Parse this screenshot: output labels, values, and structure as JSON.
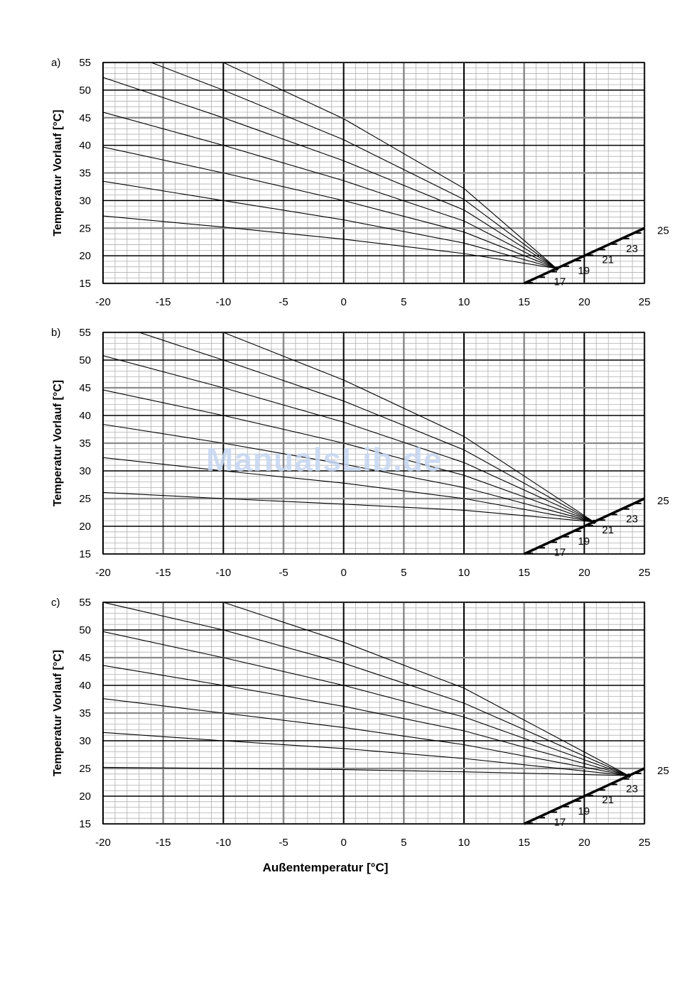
{
  "figure": {
    "xlabel": "Außentemperatur [°C]",
    "watermark": "ManualsLib.de"
  },
  "chart_data": [
    {
      "type": "line",
      "panel_label": "a)",
      "ylabel": "Temperatur Vorlauf [°C]",
      "xlim": [
        -20,
        25
      ],
      "ylim": [
        15,
        55
      ],
      "x_ticks": [
        -20,
        -15,
        -10,
        -5,
        0,
        5,
        10,
        15,
        20,
        25
      ],
      "y_ticks": [
        15,
        20,
        25,
        30,
        35,
        40,
        45,
        50,
        55
      ],
      "grid": true,
      "pivot": [
        17.7,
        17.7
      ],
      "series": [
        {
          "values": [
            [
              -20,
              27.2
            ],
            [
              -10,
              25.2
            ],
            [
              0,
              23.0
            ],
            [
              10,
              20.4
            ],
            [
              17.7,
              17.7
            ]
          ]
        },
        {
          "values": [
            [
              -20,
              33.5
            ],
            [
              -10,
              30.0
            ],
            [
              0,
              26.5
            ],
            [
              10,
              22.3
            ],
            [
              17.7,
              17.7
            ]
          ]
        },
        {
          "values": [
            [
              -20,
              39.7
            ],
            [
              -10,
              35.0
            ],
            [
              0,
              30.0
            ],
            [
              10,
              24.3
            ],
            [
              17.7,
              17.7
            ]
          ]
        },
        {
          "values": [
            [
              -20,
              46.0
            ],
            [
              -10,
              40.0
            ],
            [
              0,
              33.6
            ],
            [
              10,
              26.3
            ],
            [
              17.7,
              17.7
            ]
          ]
        },
        {
          "values": [
            [
              -20,
              52.3
            ],
            [
              -10,
              45.0
            ],
            [
              0,
              37.2
            ],
            [
              10,
              28.3
            ],
            [
              17.7,
              17.7
            ]
          ]
        },
        {
          "values": [
            [
              -16,
              55.0
            ],
            [
              -10,
              50.0
            ],
            [
              0,
              41.0
            ],
            [
              10,
              30.2
            ],
            [
              17.7,
              17.7
            ]
          ]
        },
        {
          "values": [
            [
              -10,
              55.0
            ],
            [
              0,
              44.8
            ],
            [
              10,
              32.2
            ],
            [
              17.7,
              17.7
            ]
          ]
        }
      ],
      "reference_line": {
        "values": [
          [
            15,
            15
          ],
          [
            25,
            25
          ]
        ],
        "labels": [
          "17",
          "19",
          "21",
          "23",
          "25"
        ]
      }
    },
    {
      "type": "line",
      "panel_label": "b)",
      "ylabel": "Temperatur Vorlauf [°C]",
      "xlim": [
        -20,
        25
      ],
      "ylim": [
        15,
        55
      ],
      "x_ticks": [
        -20,
        -15,
        -10,
        -5,
        0,
        5,
        10,
        15,
        20,
        25
      ],
      "y_ticks": [
        15,
        20,
        25,
        30,
        35,
        40,
        45,
        50,
        55
      ],
      "grid": true,
      "pivot": [
        20.8,
        20.8
      ],
      "series": [
        {
          "values": [
            [
              -20,
              26.1
            ],
            [
              -10,
              25.0
            ],
            [
              0,
              24.0
            ],
            [
              10,
              22.9
            ],
            [
              20.8,
              20.8
            ]
          ]
        },
        {
          "values": [
            [
              -20,
              32.4
            ],
            [
              -10,
              30.0
            ],
            [
              0,
              27.8
            ],
            [
              10,
              25.0
            ],
            [
              20.8,
              20.8
            ]
          ]
        },
        {
          "values": [
            [
              -20,
              38.4
            ],
            [
              -10,
              35.0
            ],
            [
              0,
              31.2
            ],
            [
              10,
              27.0
            ],
            [
              20.8,
              20.8
            ]
          ]
        },
        {
          "values": [
            [
              -20,
              44.6
            ],
            [
              -10,
              40.0
            ],
            [
              0,
              35.0
            ],
            [
              10,
              29.2
            ],
            [
              20.8,
              20.8
            ]
          ]
        },
        {
          "values": [
            [
              -20,
              50.8
            ],
            [
              -10,
              45.0
            ],
            [
              0,
              38.8
            ],
            [
              10,
              31.5
            ],
            [
              20.8,
              20.8
            ]
          ]
        },
        {
          "values": [
            [
              -17,
              55.0
            ],
            [
              -10,
              50.0
            ],
            [
              0,
              42.6
            ],
            [
              10,
              33.8
            ],
            [
              20.8,
              20.8
            ]
          ]
        },
        {
          "values": [
            [
              -10,
              55.0
            ],
            [
              0,
              46.4
            ],
            [
              10,
              36.2
            ],
            [
              20.8,
              20.8
            ]
          ]
        }
      ],
      "reference_line": {
        "values": [
          [
            15,
            15
          ],
          [
            25,
            25
          ]
        ],
        "labels": [
          "17",
          "19",
          "21",
          "23",
          "25"
        ]
      }
    },
    {
      "type": "line",
      "panel_label": "c)",
      "ylabel": "Temperatur Vorlauf [°C]",
      "xlim": [
        -20,
        25
      ],
      "ylim": [
        15,
        55
      ],
      "x_ticks": [
        -20,
        -15,
        -10,
        -5,
        0,
        5,
        10,
        15,
        20,
        25
      ],
      "y_ticks": [
        15,
        20,
        25,
        30,
        35,
        40,
        45,
        50,
        55
      ],
      "grid": true,
      "pivot": [
        23.7,
        23.7
      ],
      "series": [
        {
          "values": [
            [
              -20,
              25.2
            ],
            [
              -10,
              25.0
            ],
            [
              0,
              24.8
            ],
            [
              10,
              24.4
            ],
            [
              23.7,
              23.7
            ]
          ]
        },
        {
          "values": [
            [
              -20,
              31.5
            ],
            [
              -10,
              30.0
            ],
            [
              0,
              28.6
            ],
            [
              10,
              26.8
            ],
            [
              23.7,
              23.7
            ]
          ]
        },
        {
          "values": [
            [
              -20,
              37.6
            ],
            [
              -10,
              35.0
            ],
            [
              0,
              32.4
            ],
            [
              10,
              29.3
            ],
            [
              23.7,
              23.7
            ]
          ]
        },
        {
          "values": [
            [
              -20,
              43.6
            ],
            [
              -10,
              40.0
            ],
            [
              0,
              36.2
            ],
            [
              10,
              31.8
            ],
            [
              23.7,
              23.7
            ]
          ]
        },
        {
          "values": [
            [
              -20,
              49.7
            ],
            [
              -10,
              45.0
            ],
            [
              0,
              40.0
            ],
            [
              10,
              34.3
            ],
            [
              23.7,
              23.7
            ]
          ]
        },
        {
          "values": [
            [
              -20,
              55.0
            ],
            [
              -10,
              50.0
            ],
            [
              0,
              44.0
            ],
            [
              10,
              36.8
            ],
            [
              23.7,
              23.7
            ]
          ]
        },
        {
          "values": [
            [
              -10,
              55.0
            ],
            [
              0,
              47.8
            ],
            [
              10,
              39.5
            ],
            [
              23.7,
              23.7
            ]
          ]
        }
      ],
      "reference_line": {
        "values": [
          [
            15,
            15
          ],
          [
            25,
            25
          ]
        ],
        "labels": [
          "17",
          "19",
          "21",
          "23",
          "25"
        ]
      }
    }
  ]
}
